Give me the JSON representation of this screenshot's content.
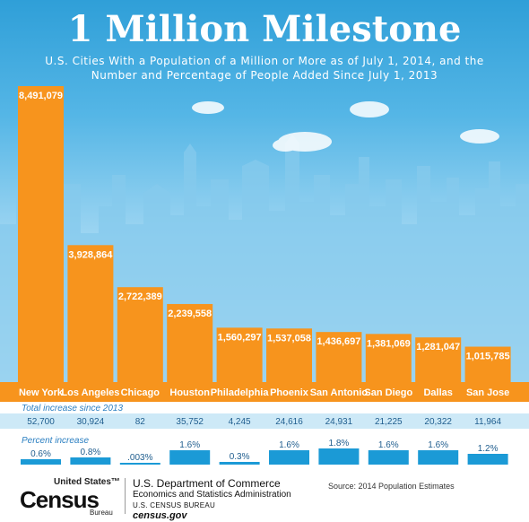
{
  "title": "1 Million Milestone",
  "subtitle": "U.S. Cities With a Population of a Million or More as of July 1, 2014, and the Number and Percentage of People Added Since July 1, 2013",
  "colors": {
    "bar": "#f7941d",
    "bar_label": "#ffffff",
    "increase_band": "#cde9f7",
    "percent_bar": "#1b9ad6",
    "row_text": "#1f5d8e",
    "row_title": "#2b7fc1",
    "sky_top": "#2f9fd8",
    "skyline": "#7ec4e9"
  },
  "chart_data": {
    "type": "bar",
    "categories": [
      "New York",
      "Los Angeles",
      "Chicago",
      "Houston",
      "Philadelphia",
      "Phoenix",
      "San Antonio",
      "San Diego",
      "Dallas",
      "San Jose"
    ],
    "values": [
      8491079,
      3928864,
      2722389,
      2239558,
      1560297,
      1537058,
      1436697,
      1381069,
      1281047,
      1015785
    ],
    "value_labels": [
      "8,491,079",
      "3,928,864",
      "2,722,389",
      "2,239,558",
      "1,560,297",
      "1,537,058",
      "1,436,697",
      "1,381,069",
      "1,281,047",
      "1,015,785"
    ],
    "ylim": [
      0,
      8491079
    ],
    "total_increase": {
      "label": "Total increase since 2013",
      "values": [
        52700,
        30924,
        82,
        35752,
        4245,
        24616,
        24931,
        21225,
        20322,
        11964
      ],
      "labels": [
        "52,700",
        "30,924",
        "82",
        "35,752",
        "4,245",
        "24,616",
        "24,931",
        "21,225",
        "20,322",
        "11,964"
      ]
    },
    "percent_increase": {
      "label": "Percent increase",
      "values": [
        0.6,
        0.8,
        0.003,
        1.6,
        0.3,
        1.6,
        1.8,
        1.6,
        1.6,
        1.2
      ],
      "labels": [
        "0.6%",
        "0.8%",
        ".003%",
        "1.6%",
        "0.3%",
        "1.6%",
        "1.8%",
        "1.6%",
        "1.6%",
        "1.2%"
      ]
    }
  },
  "footer": {
    "logo_top": "United States",
    "logo_tm": "™",
    "logo_main": "Census",
    "logo_bottom": "Bureau",
    "dept_name": "U.S. Department of Commerce",
    "dept_sub": "Economics and Statistics Administration",
    "dept_bureau": "U.S. CENSUS BUREAU",
    "dept_web": "census.gov",
    "source": "Source: 2014 Population Estimates"
  }
}
